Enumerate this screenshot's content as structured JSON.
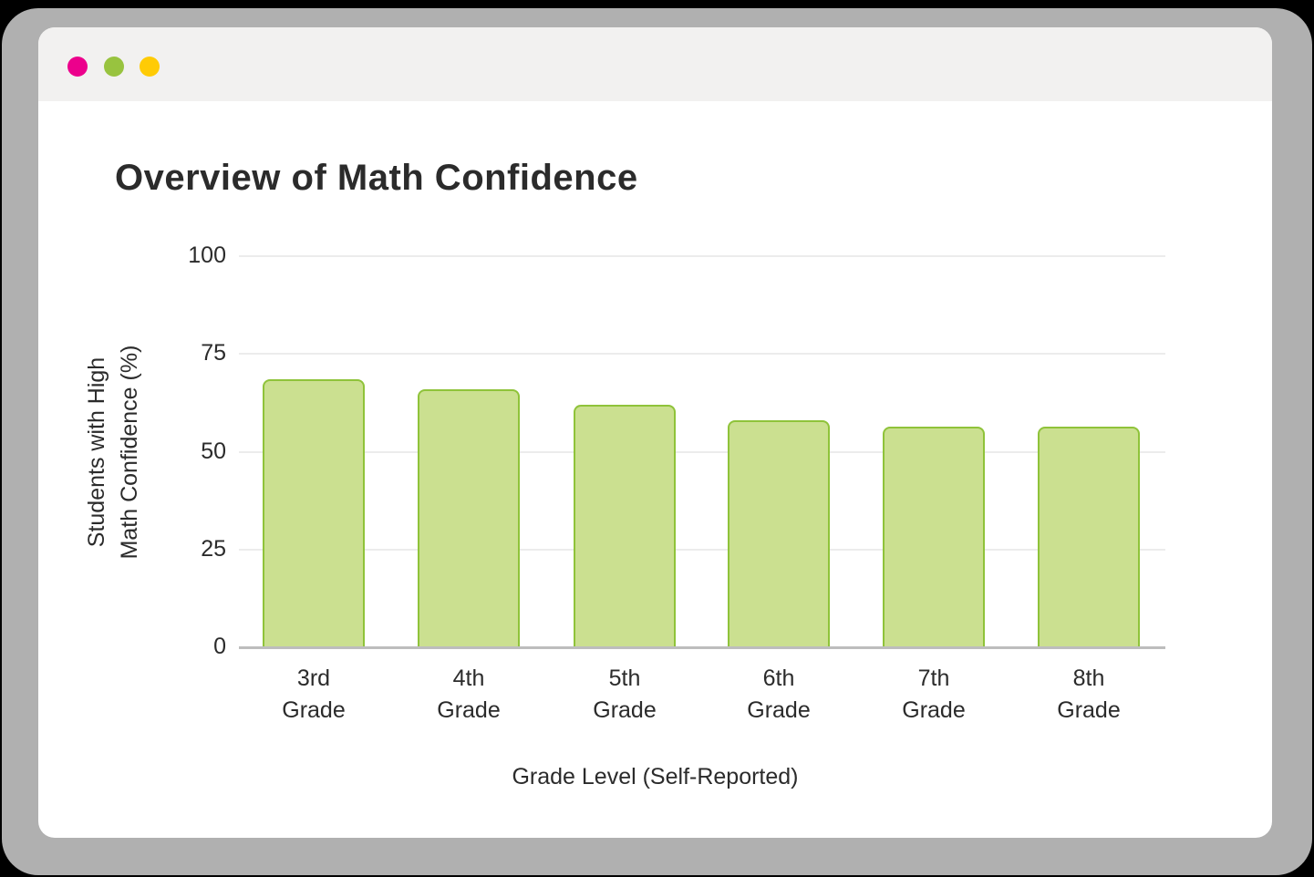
{
  "window": {
    "controls": [
      {
        "name": "close",
        "color": "#ec008c"
      },
      {
        "name": "minimize",
        "color": "#98c33f"
      },
      {
        "name": "maximize",
        "color": "#ffcb05"
      }
    ]
  },
  "title": "Overview of Math Confidence",
  "colors": {
    "bar_fill": "#cbe090",
    "bar_border": "#8fc33a",
    "gridline": "#ececec",
    "axis": "#bdbdbd"
  },
  "chart_data": {
    "type": "bar",
    "title": "Overview of Math Confidence",
    "xlabel": "Grade Level (Self-Reported)",
    "ylabel": "Students with High Math Confidence (%)",
    "ylabel_lines": [
      "Students with High",
      "Math Confidence (%)"
    ],
    "categories": [
      "3rd Grade",
      "4th Grade",
      "5th Grade",
      "6th Grade",
      "7th Grade",
      "8th Grade"
    ],
    "category_lines": [
      [
        "3rd",
        "Grade"
      ],
      [
        "4th",
        "Grade"
      ],
      [
        "5th",
        "Grade"
      ],
      [
        "6th",
        "Grade"
      ],
      [
        "7th",
        "Grade"
      ],
      [
        "8th",
        "Grade"
      ]
    ],
    "values": [
      68.5,
      66,
      62,
      58,
      56.5,
      56.5
    ],
    "ylim": [
      0,
      100
    ],
    "yticks": [
      0,
      25,
      50,
      75,
      100
    ],
    "grid": true,
    "legend": "none"
  }
}
